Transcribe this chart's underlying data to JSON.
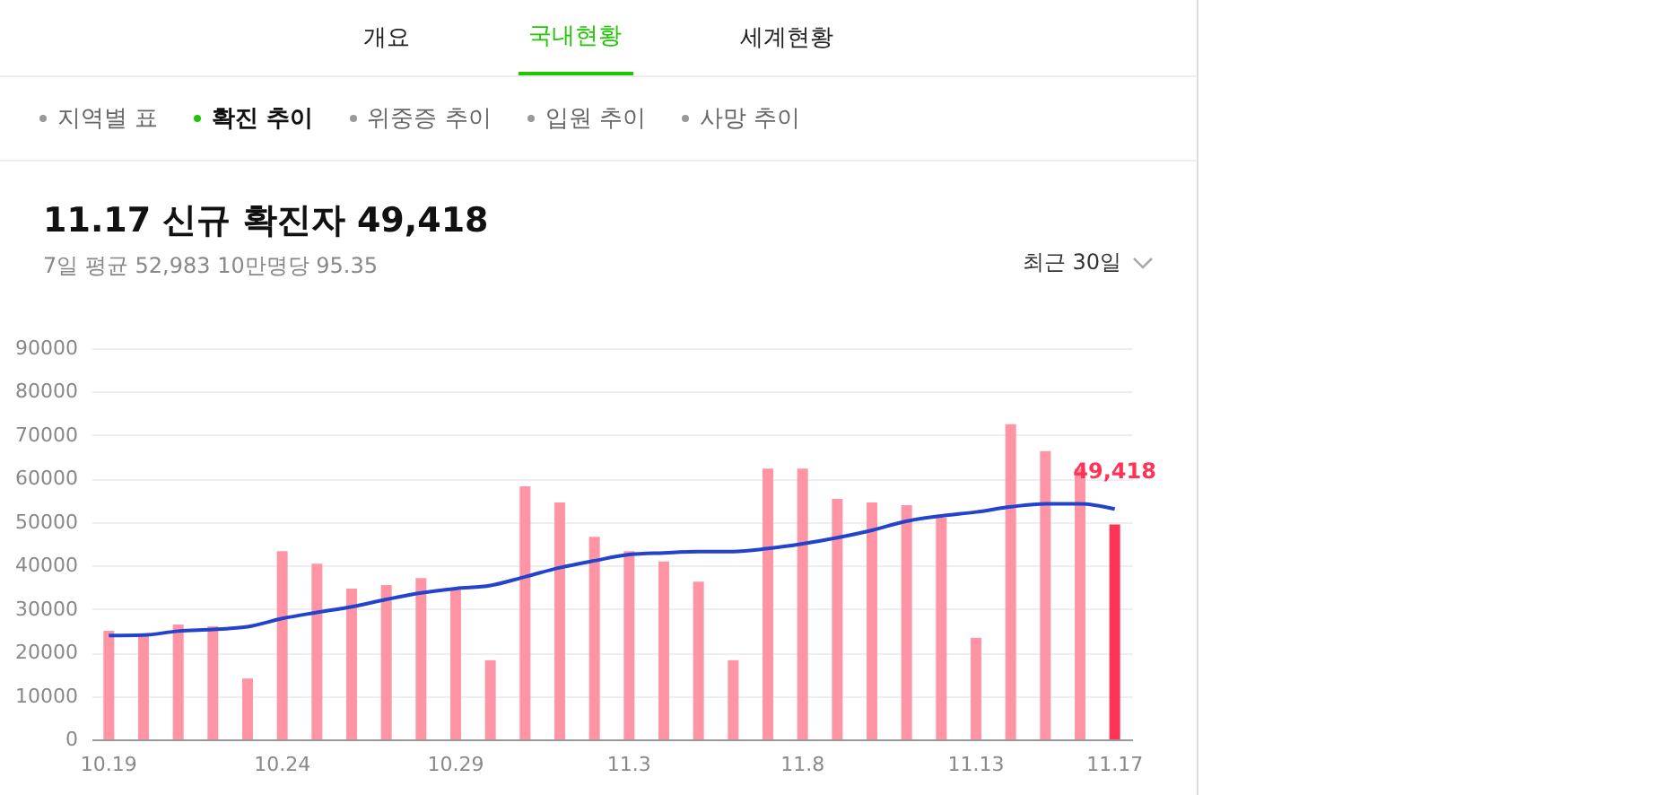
{
  "chart_data": {
    "type": "bar",
    "title": "11.17 신규 확진자 49,418",
    "subtitle": "7일 평균 52,983 10만명당 95.35",
    "annotations": [
      "개요",
      "국내현황",
      "세계현황",
      "지역별 표",
      "확진 추이",
      "위중증 추이",
      "입원 추이",
      "사망 추이",
      "최근 30일"
    ],
    "categories": [
      "10.19",
      null,
      null,
      null,
      null,
      "10.24",
      null,
      null,
      null,
      null,
      "10.29",
      null,
      null,
      null,
      null,
      "11.3",
      null,
      null,
      null,
      null,
      "11.8",
      null,
      null,
      null,
      null,
      "11.13",
      null,
      null,
      null,
      "11.17"
    ],
    "series": [
      {
        "type": "bar",
        "colors": [
          "#ff94a5",
          "#ff94a5",
          "#ff94a5",
          "#ff94a5",
          "#ff94a5",
          "#ff94a5",
          "#ff94a5",
          "#ff94a5",
          "#ff94a5",
          "#ff94a5",
          "#ff94a5",
          "#ff94a5",
          "#ff94a5",
          "#ff94a5",
          "#ff94a5",
          "#ff94a5",
          "#ff94a5",
          "#ff94a5",
          "#ff94a5",
          "#ff94a5",
          "#ff94a5",
          "#ff94a5",
          "#ff94a5",
          "#ff94a5",
          "#ff94a5",
          "#ff94a5",
          "#ff94a5",
          "#ff94a5",
          "#ff94a5",
          "#ff3355"
        ],
        "values": [
          25000,
          24300,
          26400,
          26000,
          14000,
          43300,
          40400,
          34700,
          35500,
          37100,
          34400,
          18200,
          58200,
          54500,
          46600,
          43300,
          40900,
          36300,
          18200,
          62300,
          62300,
          55300,
          54500,
          53900,
          51000,
          23400,
          72500,
          66300,
          62300,
          49418
        ],
        "value_labels": [
          null,
          null,
          null,
          null,
          null,
          null,
          null,
          null,
          null,
          null,
          null,
          null,
          null,
          null,
          null,
          null,
          null,
          null,
          null,
          null,
          null,
          null,
          null,
          null,
          null,
          null,
          null,
          null,
          null,
          "49,418"
        ]
      },
      {
        "type": "line",
        "color": "#2244cc",
        "values": [
          23900,
          24000,
          24900,
          25300,
          25900,
          27800,
          29200,
          30500,
          32200,
          33700,
          34700,
          35400,
          37400,
          39500,
          41100,
          42500,
          42900,
          43200,
          43200,
          43900,
          45000,
          46400,
          48100,
          50200,
          51400,
          52300,
          53500,
          54200,
          54200,
          53000
        ]
      }
    ],
    "ylim": [
      0,
      90000
    ],
    "yticks": [
      0,
      10000,
      20000,
      30000,
      40000,
      50000,
      60000,
      70000,
      80000,
      90000
    ],
    "grid": "y"
  }
}
